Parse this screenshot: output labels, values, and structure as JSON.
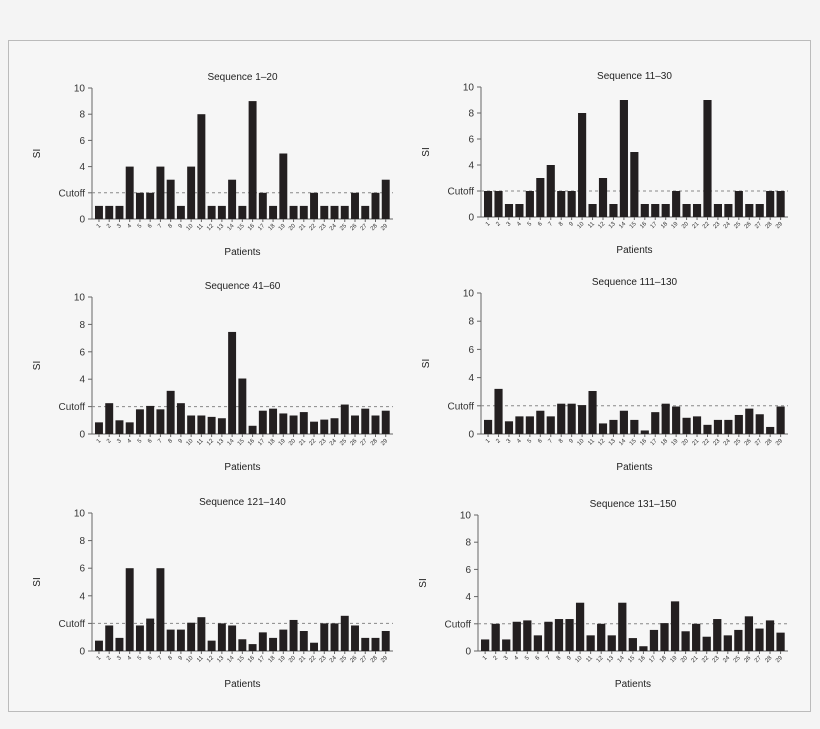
{
  "chart_data": [
    {
      "type": "bar",
      "title": "Sequence 1–20",
      "xlabel": "Patients",
      "ylabel": "SI",
      "ylim": [
        0,
        10
      ],
      "yticks": [
        "0",
        "Cutoff",
        "4",
        "6",
        "8",
        "10"
      ],
      "cutoff": 2,
      "grid": false,
      "categories": [
        "1",
        "2",
        "3",
        "4",
        "5",
        "6",
        "7",
        "8",
        "9",
        "10",
        "11",
        "12",
        "13",
        "14",
        "15",
        "16",
        "17",
        "18",
        "19",
        "20",
        "21",
        "22",
        "23",
        "24",
        "25",
        "26",
        "27",
        "28",
        "29"
      ],
      "values": [
        1,
        1,
        1,
        4,
        2,
        2,
        4,
        3,
        1,
        4,
        8,
        1,
        1,
        3,
        1,
        9,
        2,
        1,
        5,
        1,
        1,
        2,
        1,
        1,
        1,
        2,
        1,
        2,
        3
      ]
    },
    {
      "type": "bar",
      "title": "Sequence 11–30",
      "xlabel": "Patients",
      "ylabel": "SI",
      "ylim": [
        0,
        10
      ],
      "yticks": [
        "0",
        "Cutoff",
        "4",
        "6",
        "8",
        "10"
      ],
      "cutoff": 2,
      "grid": false,
      "categories": [
        "1",
        "2",
        "3",
        "4",
        "5",
        "6",
        "7",
        "8",
        "9",
        "10",
        "11",
        "12",
        "13",
        "14",
        "15",
        "16",
        "17",
        "18",
        "19",
        "20",
        "21",
        "22",
        "23",
        "24",
        "25",
        "26",
        "27",
        "28",
        "29"
      ],
      "values": [
        2,
        2,
        1,
        1,
        2,
        3,
        4,
        2,
        2,
        8,
        1,
        3,
        1,
        9,
        5,
        1,
        1,
        1,
        2,
        1,
        1,
        9,
        1,
        1,
        2,
        1,
        1,
        2,
        2
      ]
    },
    {
      "type": "bar",
      "title": "Sequence 41–60",
      "xlabel": "Patients",
      "ylabel": "SI",
      "ylim": [
        0,
        10
      ],
      "yticks": [
        "0",
        "Cutoff",
        "4",
        "6",
        "8",
        "10"
      ],
      "cutoff": 2,
      "grid": false,
      "categories": [
        "1",
        "2",
        "3",
        "4",
        "5",
        "6",
        "7",
        "8",
        "9",
        "10",
        "11",
        "12",
        "13",
        "14",
        "15",
        "16",
        "17",
        "18",
        "19",
        "20",
        "21",
        "22",
        "23",
        "24",
        "25",
        "26",
        "27",
        "28",
        "29"
      ],
      "values": [
        0.85,
        2.25,
        1.0,
        0.85,
        1.8,
        2.05,
        1.8,
        3.15,
        2.25,
        1.35,
        1.35,
        1.25,
        1.15,
        7.45,
        4.05,
        0.6,
        1.7,
        1.85,
        1.5,
        1.35,
        1.6,
        0.9,
        1.05,
        1.15,
        2.15,
        1.35,
        1.85,
        1.35,
        1.7
      ]
    },
    {
      "type": "bar",
      "title": "Sequence 111–130",
      "xlabel": "Patients",
      "ylabel": "SI",
      "ylim": [
        0,
        10
      ],
      "yticks": [
        "0",
        "Cutoff",
        "4",
        "6",
        "8",
        "10"
      ],
      "cutoff": 2,
      "grid": false,
      "categories": [
        "1",
        "2",
        "3",
        "4",
        "5",
        "6",
        "7",
        "8",
        "9",
        "10",
        "11",
        "12",
        "13",
        "14",
        "15",
        "16",
        "17",
        "18",
        "19",
        "20",
        "21",
        "22",
        "23",
        "24",
        "25",
        "26",
        "27",
        "28",
        "29"
      ],
      "values": [
        1.0,
        3.2,
        0.9,
        1.25,
        1.25,
        1.65,
        1.25,
        2.15,
        2.15,
        2.05,
        3.05,
        0.75,
        1.0,
        1.65,
        1.0,
        0.25,
        1.55,
        2.15,
        1.95,
        1.15,
        1.25,
        0.65,
        1.0,
        1.0,
        1.35,
        1.8,
        1.4,
        0.5,
        1.95
      ]
    },
    {
      "type": "bar",
      "title": "Sequence 121–140",
      "xlabel": "Patients",
      "ylabel": "SI",
      "ylim": [
        0,
        10
      ],
      "yticks": [
        "0",
        "Cutoff",
        "4",
        "6",
        "8",
        "10"
      ],
      "cutoff": 2,
      "grid": false,
      "categories": [
        "1",
        "2",
        "3",
        "4",
        "5",
        "6",
        "7",
        "8",
        "9",
        "10",
        "11",
        "12",
        "13",
        "14",
        "15",
        "16",
        "17",
        "18",
        "19",
        "20",
        "21",
        "22",
        "23",
        "24",
        "25",
        "26",
        "27",
        "28",
        "29"
      ],
      "values": [
        0.75,
        1.85,
        0.95,
        6,
        1.85,
        2.35,
        6,
        1.55,
        1.55,
        2.05,
        2.45,
        0.75,
        2.0,
        1.85,
        0.85,
        0.5,
        1.35,
        0.95,
        1.55,
        2.25,
        1.45,
        0.6,
        2.0,
        2.0,
        2.55,
        1.85,
        0.95,
        0.95,
        1.45
      ]
    },
    {
      "type": "bar",
      "title": "Sequence 131–150",
      "xlabel": "Patients",
      "ylabel": "SI",
      "ylim": [
        0,
        10
      ],
      "yticks": [
        "0",
        "Cutoff",
        "4",
        "6",
        "8",
        "10"
      ],
      "cutoff": 2,
      "grid": false,
      "categories": [
        "1",
        "2",
        "3",
        "4",
        "5",
        "6",
        "7",
        "8",
        "9",
        "10",
        "11",
        "12",
        "13",
        "14",
        "15",
        "16",
        "17",
        "18",
        "19",
        "20",
        "21",
        "22",
        "23",
        "24",
        "25",
        "26",
        "27",
        "28",
        "29"
      ],
      "values": [
        0.85,
        2.0,
        0.85,
        2.15,
        2.25,
        1.15,
        2.15,
        2.35,
        2.35,
        3.55,
        1.15,
        2.0,
        1.15,
        3.55,
        0.95,
        0.35,
        1.55,
        2.05,
        3.65,
        1.45,
        2.0,
        1.05,
        2.35,
        1.15,
        1.55,
        2.55,
        1.65,
        2.25,
        1.35
      ]
    }
  ],
  "colors": {
    "bar": "#231f20",
    "axis": "#666666",
    "cutoff_line": "#888888"
  }
}
